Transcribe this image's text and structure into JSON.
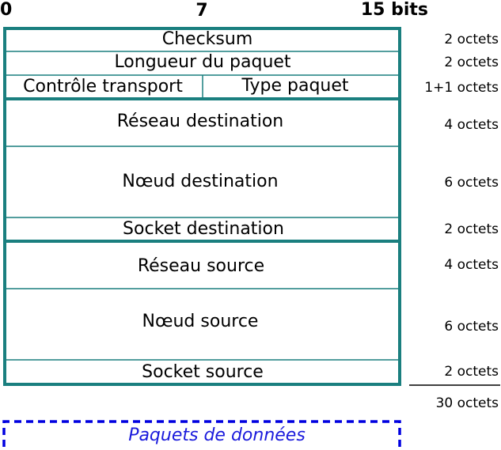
{
  "header": {
    "bits": [
      "0",
      "7",
      "15 bits"
    ]
  },
  "fields": [
    {
      "label": "Checksum",
      "size": "2 octets"
    },
    {
      "label": "Longueur du paquet",
      "size": "2 octets"
    },
    {
      "labels": [
        "Contrôle transport",
        "Type paquet"
      ],
      "size": "1+1 octets"
    },
    {
      "label": "Réseau destination",
      "size": "4 octets"
    },
    {
      "label": "Nœud destination",
      "size": "6 octets"
    },
    {
      "label": "Socket destination",
      "size": "2 octets"
    },
    {
      "label": "Réseau source",
      "size": "4 octets"
    },
    {
      "label": "Nœud source",
      "size": "6 octets"
    },
    {
      "label": "Socket source",
      "size": "2 octets"
    }
  ],
  "total": "30 octets",
  "payload": "Paquets de données"
}
